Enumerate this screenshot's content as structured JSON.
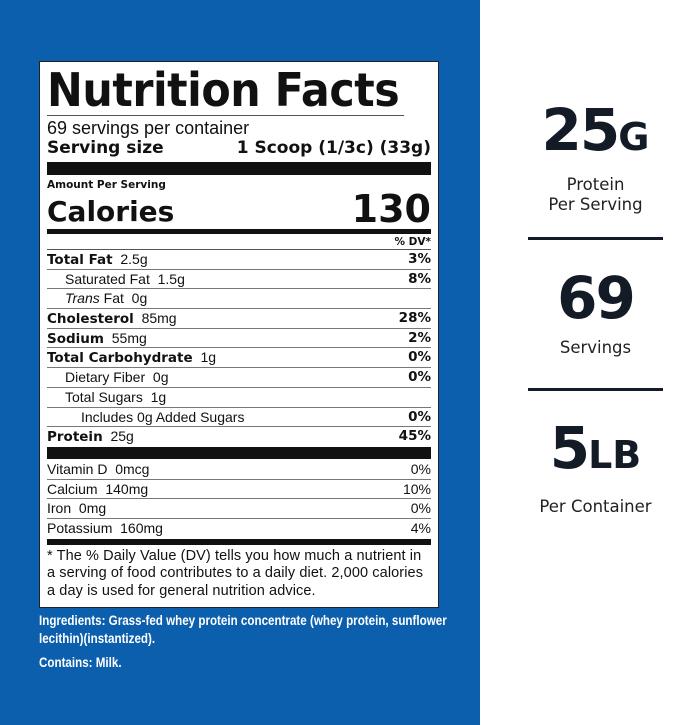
{
  "label": {
    "title": "Nutrition Facts",
    "servings_per_container": "69 servings per container",
    "serving_size_label": "Serving size",
    "serving_size_value": "1 Scoop (1/3c) (33g)",
    "amount_per_serving": "Amount Per Serving",
    "calories_label": "Calories",
    "calories_value": "130",
    "dv_header": "% DV*",
    "nutrients": [
      {
        "name": "Total Fat",
        "amount": "2.5g",
        "dv": "3%"
      },
      {
        "name": "Saturated Fat",
        "amount": "1.5g",
        "dv": "8%"
      },
      {
        "name": "Trans",
        "name2": "Fat",
        "amount": "0g",
        "dv": ""
      },
      {
        "name": "Cholesterol",
        "amount": "85mg",
        "dv": "28%"
      },
      {
        "name": "Sodium",
        "amount": "55mg",
        "dv": "2%"
      },
      {
        "name": "Total Carbohydrate",
        "amount": "1g",
        "dv": "0%"
      },
      {
        "name": "Dietary Fiber",
        "amount": "0g",
        "dv": "0%"
      },
      {
        "name": "Total Sugars",
        "amount": "1g",
        "dv": ""
      },
      {
        "name": "Includes 0g Added Sugars",
        "amount": "",
        "dv": "0%"
      },
      {
        "name": "Protein",
        "amount": "25g",
        "dv": "45%"
      }
    ],
    "vitamins": [
      {
        "name": "Vitamin D",
        "amount": "0mcg",
        "dv": "0%"
      },
      {
        "name": "Calcium",
        "amount": "140mg",
        "dv": "10%"
      },
      {
        "name": "Iron",
        "amount": "0mg",
        "dv": "0%"
      },
      {
        "name": "Potassium",
        "amount": "160mg",
        "dv": "4%"
      }
    ],
    "footnote": "* The % Daily Value (DV) tells you how much a nutrient in a serving of food contributes to a daily diet. 2,000 calories a day is used for general nutrition advice."
  },
  "ingredients": "Ingredients: Grass-fed whey protein concentrate (whey protein, sunflower lecithin)(instantized).",
  "contains": "Contains: Milk.",
  "highlights": [
    {
      "value": "25",
      "unit": "G",
      "caption1": "Protein",
      "caption2": "Per Serving"
    },
    {
      "value": "69",
      "unit": "",
      "caption1": "Servings",
      "caption2": ""
    },
    {
      "value": "5",
      "unit": "LB",
      "caption1": "Per Container",
      "caption2": ""
    }
  ],
  "colors": {
    "panel_blue": "#0b5fad",
    "text_dark": "#131b26"
  }
}
